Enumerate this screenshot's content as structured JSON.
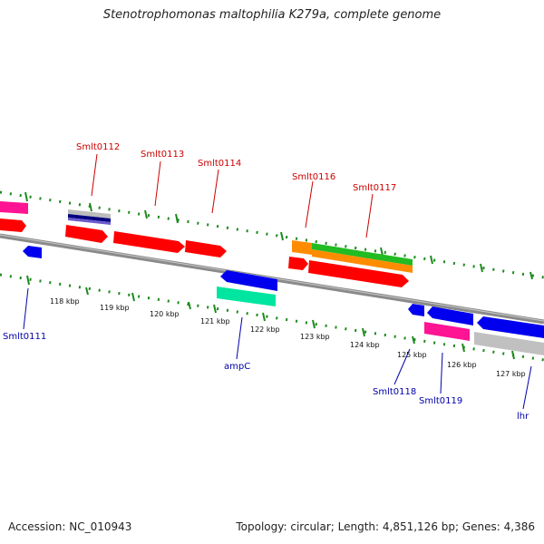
{
  "title": "Stenotrophomonas maltophilia K279a, complete genome",
  "accession": "Accession: NC_010943",
  "topology": "Topology: circular; Length: 4,851,126 bp; Genes: 4,386",
  "colors": {
    "backbone": "#8a8a8a",
    "ticks": "#1e8a1e",
    "label_top": "#cc0000",
    "label_bottom": "#0000aa"
  },
  "kbp_labels": [
    "118 kbp",
    "119 kbp",
    "120 kbp",
    "121 kbp",
    "122 kbp",
    "123 kbp",
    "124 kbp",
    "125 kbp",
    "126 kbp",
    "127 kbp"
  ],
  "top_labels": [
    "Smlt0112",
    "Smlt0113",
    "Smlt0114",
    "Smlt0116",
    "Smlt0117"
  ],
  "bottom_labels": [
    "Smlt0111",
    "ampC",
    "Smlt0118",
    "Smlt0119",
    "lhr"
  ]
}
